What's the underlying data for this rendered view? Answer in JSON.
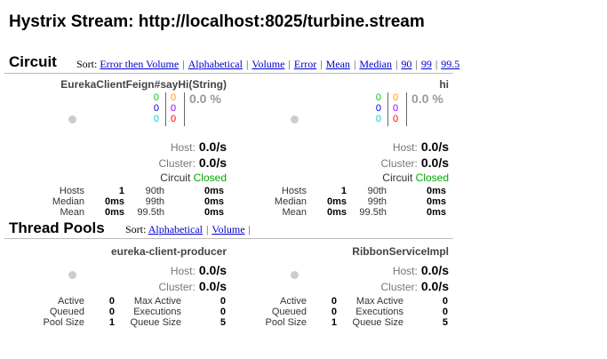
{
  "title": "Hystrix Stream: http://localhost:8025/turbine.stream",
  "circuit": {
    "heading": "Circuit",
    "sort_label": "Sort:",
    "sort_options": [
      "Error then Volume",
      "Alphabetical",
      "Volume",
      "Error",
      "Mean",
      "Median",
      "90",
      "99",
      "99.5"
    ],
    "panels": [
      {
        "name": "EurekaClientFeign#sayHi(String)",
        "counts_a": [
          "0",
          "0",
          "0"
        ],
        "counts_b": [
          "0",
          "0",
          "0"
        ],
        "error_pct": "0.0 %",
        "host_label": "Host:",
        "host_value": "0.0/s",
        "cluster_label": "Cluster:",
        "cluster_value": "0.0/s",
        "circuit_label": "Circuit",
        "circuit_state": "Closed",
        "stats": [
          [
            "Hosts",
            "1",
            "90th",
            "0ms"
          ],
          [
            "Median",
            "0ms",
            "99th",
            "0ms"
          ],
          [
            "Mean",
            "0ms",
            "99.5th",
            "0ms"
          ]
        ]
      },
      {
        "name": "hi",
        "counts_a": [
          "0",
          "0",
          "0"
        ],
        "counts_b": [
          "0",
          "0",
          "0"
        ],
        "error_pct": "0.0 %",
        "host_label": "Host:",
        "host_value": "0.0/s",
        "cluster_label": "Cluster:",
        "cluster_value": "0.0/s",
        "circuit_label": "Circuit",
        "circuit_state": "Closed",
        "stats": [
          [
            "Hosts",
            "1",
            "90th",
            "0ms"
          ],
          [
            "Median",
            "0ms",
            "99th",
            "0ms"
          ],
          [
            "Mean",
            "0ms",
            "99.5th",
            "0ms"
          ]
        ]
      }
    ]
  },
  "thread_pools": {
    "heading": "Thread Pools",
    "sort_label": "Sort:",
    "sort_options": [
      "Alphabetical",
      "Volume"
    ],
    "panels": [
      {
        "name": "eureka-client-producer",
        "host_label": "Host:",
        "host_value": "0.0/s",
        "cluster_label": "Cluster:",
        "cluster_value": "0.0/s",
        "stats": [
          [
            "Active",
            "0",
            "Max Active",
            "0"
          ],
          [
            "Queued",
            "0",
            "Executions",
            "0"
          ],
          [
            "Pool Size",
            "1",
            "Queue Size",
            "5"
          ]
        ]
      },
      {
        "name": "RibbonServiceImpl",
        "host_label": "Host:",
        "host_value": "0.0/s",
        "cluster_label": "Cluster:",
        "cluster_value": "0.0/s",
        "stats": [
          [
            "Active",
            "0",
            "Max Active",
            "0"
          ],
          [
            "Queued",
            "0",
            "Executions",
            "0"
          ],
          [
            "Pool Size",
            "1",
            "Queue Size",
            "5"
          ]
        ]
      }
    ]
  },
  "colors": {
    "success": "#00cc00",
    "short_circuited": "#0000cc",
    "bad_request": "#00cccc",
    "timeout": "#ff9900",
    "rejected": "#9900ff",
    "failure": "#ff0000",
    "link": "#0000cc",
    "closed": "#00aa00"
  }
}
